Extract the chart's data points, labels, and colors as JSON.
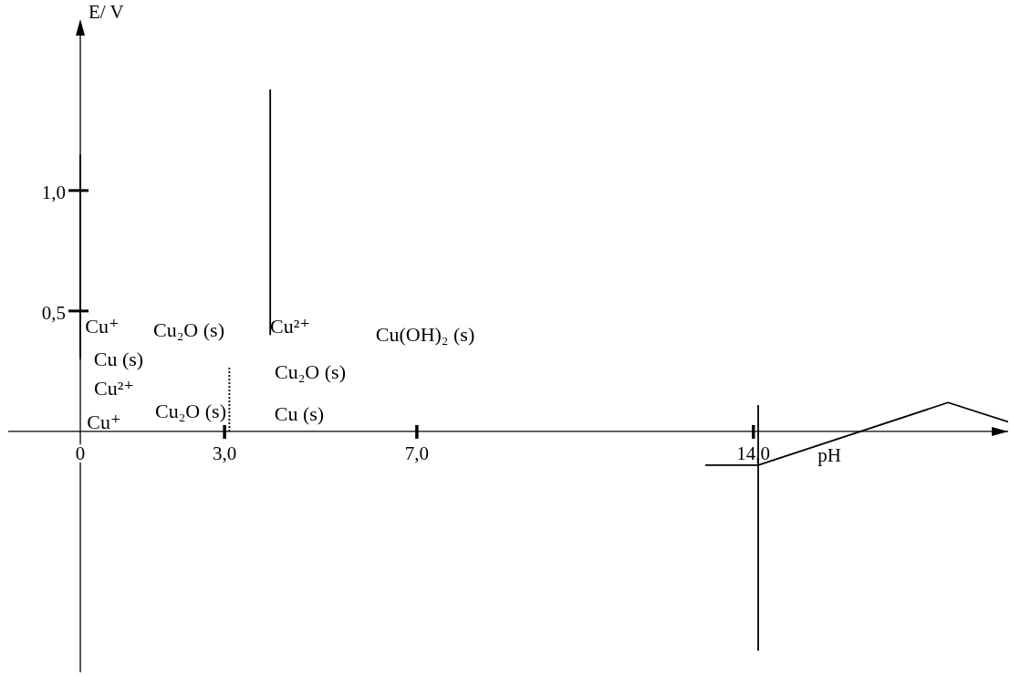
{
  "chart_data": {
    "type": "line",
    "xlabel": "pH",
    "ylabel": "E/ V",
    "xlim": [
      -1.5,
      19.3
    ],
    "ylim": [
      -1.0,
      1.7
    ],
    "xticks": [
      0,
      {
        "value": 3,
        "label": "3,0"
      },
      {
        "value": 7,
        "label": "7,0"
      },
      {
        "value": 14,
        "label": "14,0"
      }
    ],
    "yticks": [
      {
        "value": 0.5,
        "label": "0,5"
      },
      {
        "value": 1,
        "label": "1,0"
      }
    ],
    "series": [
      {
        "color": "#000000",
        "x": [
          0,
          0
        ],
        "values": [
          0.3,
          1.15
        ]
      },
      {
        "color": "#000000",
        "x": [
          3.95,
          3.95
        ],
        "values": [
          1.42,
          0.4
        ]
      },
      {
        "color": "#000000",
        "x": [
          3.1,
          3.1
        ],
        "values": [
          0,
          0.27
        ],
        "line_style": "dotted"
      },
      {
        "color": "#000000",
        "x": [
          14.1,
          14.1
        ],
        "values": [
          0.11,
          -0.91
        ]
      },
      {
        "color": "#000000",
        "x": [
          13.0,
          14.1,
          18.05,
          19.3
        ],
        "values": [
          -0.14,
          -0.14,
          0.12,
          0.04
        ]
      }
    ],
    "annotations": [
      "Cu⁺",
      "Cu₂O (s)",
      "Cu²⁺",
      "Cu(OH)₂ (s)",
      "Cu (s)",
      "Cu₂O (s)",
      "Cu²⁺",
      "Cu₂O (s)",
      "Cu (s)",
      "Cu⁺"
    ]
  }
}
